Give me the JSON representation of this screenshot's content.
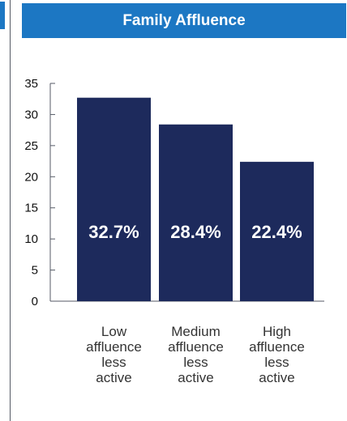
{
  "header": {
    "title": "Family Affluence"
  },
  "colors": {
    "header_bg": "#1c77c3",
    "bar": "#1d2a5c",
    "axis": "#555a66"
  },
  "chart_data": {
    "type": "bar",
    "title": "Family Affluence",
    "categories": [
      [
        "Low",
        "affluence",
        "less",
        "active"
      ],
      [
        "Medium",
        "affluence",
        "less",
        "active"
      ],
      [
        "High",
        "affluence",
        "less",
        "active"
      ]
    ],
    "values": [
      32.7,
      28.4,
      22.4
    ],
    "data_labels": [
      "32.7%",
      "28.4%",
      "22.4%"
    ],
    "yticks": [
      0,
      5,
      10,
      15,
      20,
      25,
      30,
      35
    ],
    "ylim": [
      0,
      35
    ],
    "grid": false,
    "legend": "none"
  }
}
